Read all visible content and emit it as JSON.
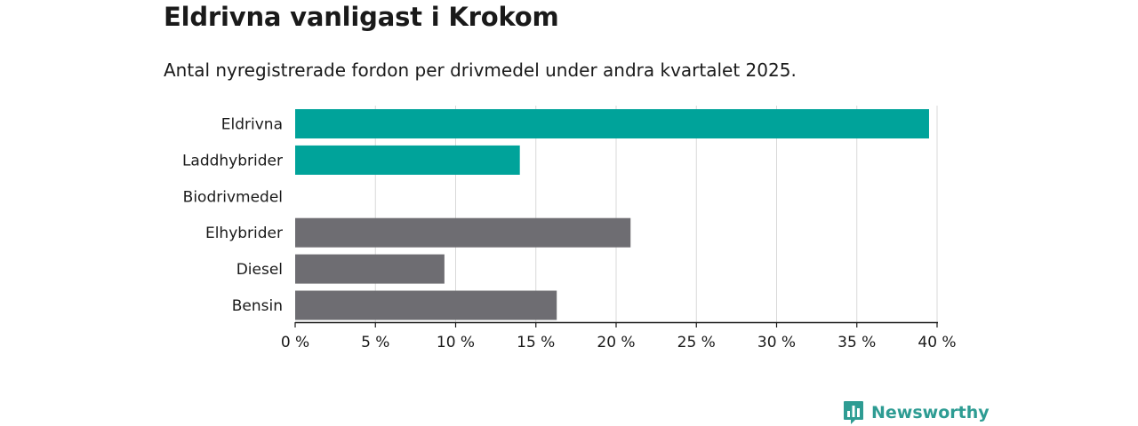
{
  "header": {
    "title": "Eldrivna vanligast i Krokom",
    "subtitle": "Antal nyregistrerade fordon per drivmedel under andra kvartalet 2025."
  },
  "brand": {
    "name": "Newsworthy",
    "icon": "bar-chart-speech-bubble-icon",
    "color": "#2e9c93"
  },
  "colors": {
    "highlight": "#00a39a",
    "base": "#6e6d72",
    "grid": "#d9d9d9",
    "axis": "#1a1a1a"
  },
  "chart_data": {
    "type": "bar",
    "orientation": "horizontal",
    "title": "Eldrivna vanligast i Krokom",
    "subtitle": "Antal nyregistrerade fordon per drivmedel under andra kvartalet 2025.",
    "categories": [
      "Eldrivna",
      "Laddhybrider",
      "Biodrivmedel",
      "Elhybrider",
      "Diesel",
      "Bensin"
    ],
    "values": [
      39.5,
      14.0,
      0,
      20.9,
      9.3,
      16.3
    ],
    "bar_colors": [
      "#00a39a",
      "#00a39a",
      "#6e6d72",
      "#6e6d72",
      "#6e6d72",
      "#6e6d72"
    ],
    "xlim": [
      0,
      40
    ],
    "xticks": [
      0,
      5,
      10,
      15,
      20,
      25,
      30,
      35,
      40
    ],
    "tick_labels": [
      "0 %",
      "5 %",
      "10 %",
      "15 %",
      "20 %",
      "25 %",
      "30 %",
      "35 %",
      "40 %"
    ],
    "unit": "%",
    "grid": "vertical",
    "legend": "none"
  }
}
